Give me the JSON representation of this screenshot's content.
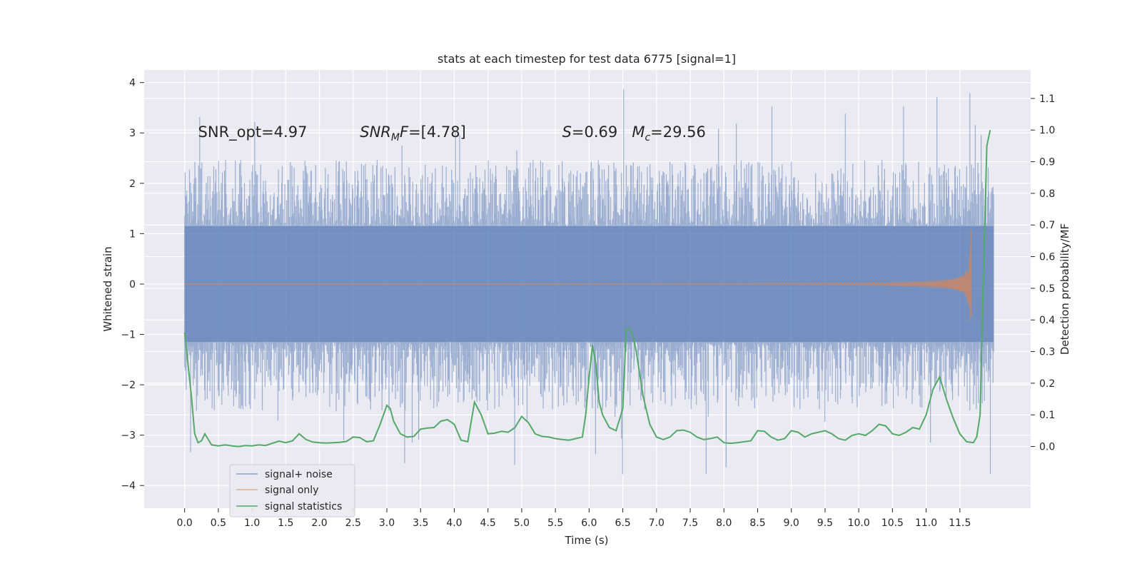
{
  "chart_data": {
    "type": "line",
    "title": "stats at each timestep for test data 6775 [signal=1]",
    "xlabel": "Time (s)",
    "ylabel": "Whitened strain",
    "y2label": "Detection probability/MF",
    "xlim": [
      -0.6,
      12.55
    ],
    "ylim": [
      -4.45,
      4.25
    ],
    "y2lim": [
      -0.195,
      1.19
    ],
    "xticks": [
      0.0,
      0.5,
      1.0,
      1.5,
      2.0,
      2.5,
      3.0,
      3.5,
      4.0,
      4.5,
      5.0,
      5.5,
      6.0,
      6.5,
      7.0,
      7.5,
      8.0,
      8.5,
      9.0,
      9.5,
      10.0,
      10.5,
      11.0,
      11.5
    ],
    "xtick_labels": [
      "0.0",
      "0.5",
      "1.0",
      "1.5",
      "2.0",
      "2.5",
      "3.0",
      "3.5",
      "4.0",
      "4.5",
      "5.0",
      "5.5",
      "6.0",
      "6.5",
      "7.0",
      "7.5",
      "8.0",
      "8.5",
      "9.0",
      "9.5",
      "10.0",
      "10.5",
      "11.0",
      "11.5"
    ],
    "yticks": [
      -4,
      -3,
      -2,
      -1,
      0,
      1,
      2,
      3,
      4
    ],
    "ytick_labels": [
      "−4",
      "−3",
      "−2",
      "−1",
      "0",
      "1",
      "2",
      "3",
      "4"
    ],
    "y2ticks": [
      0.0,
      0.1,
      0.2,
      0.3,
      0.4,
      0.5,
      0.6,
      0.7,
      0.8,
      0.9,
      1.0,
      1.1
    ],
    "y2tick_labels": [
      "0.0",
      "0.1",
      "0.2",
      "0.3",
      "0.4",
      "0.5",
      "0.6",
      "0.7",
      "0.8",
      "0.9",
      "1.0",
      "1.1"
    ],
    "grid": true,
    "legend_position": "lower-left",
    "colors": {
      "background": "#eaeaf2",
      "noise": "#4c72b0",
      "signal": "#dd8452",
      "stat": "#55a868",
      "grid": "#ffffff"
    },
    "annotations": [
      {
        "text": "SNR_opt=4.97",
        "x": 0.2,
        "y": 3.0
      },
      {
        "text": "SNR_MF=[4.78]",
        "x": 2.6,
        "y": 3.0
      },
      {
        "text": "S=0.69   M_c=29.56",
        "x": 5.6,
        "y": 3.0
      }
    ],
    "series": [
      {
        "name": "signal+ noise",
        "axis": "left",
        "kind": "noise_band",
        "x_range": [
          0.0,
          12.0
        ],
        "core_amplitude": 1.15,
        "typical_peak": 2.2,
        "max_peak": 3.9,
        "min_trough": -4.1
      },
      {
        "name": "signal only",
        "axis": "left",
        "kind": "chirp",
        "x_range": [
          0.0,
          11.7
        ],
        "peak_time": 11.67,
        "peak_amplitude": 1.1
      },
      {
        "name": "signal statistics",
        "axis": "right",
        "x": [
          0.0,
          0.05,
          0.1,
          0.15,
          0.2,
          0.25,
          0.3,
          0.4,
          0.5,
          0.6,
          0.7,
          0.8,
          0.9,
          1.0,
          1.1,
          1.2,
          1.3,
          1.4,
          1.5,
          1.6,
          1.7,
          1.8,
          1.9,
          2.0,
          2.1,
          2.2,
          2.3,
          2.4,
          2.5,
          2.6,
          2.7,
          2.8,
          2.9,
          3.0,
          3.05,
          3.1,
          3.2,
          3.3,
          3.4,
          3.5,
          3.6,
          3.7,
          3.8,
          3.9,
          4.0,
          4.1,
          4.2,
          4.3,
          4.4,
          4.5,
          4.6,
          4.7,
          4.8,
          4.9,
          5.0,
          5.1,
          5.2,
          5.3,
          5.4,
          5.5,
          5.6,
          5.7,
          5.8,
          5.9,
          5.95,
          6.0,
          6.05,
          6.1,
          6.15,
          6.2,
          6.3,
          6.4,
          6.5,
          6.55,
          6.6,
          6.65,
          6.7,
          6.8,
          6.9,
          7.0,
          7.1,
          7.2,
          7.3,
          7.4,
          7.5,
          7.6,
          7.7,
          7.8,
          7.9,
          8.0,
          8.1,
          8.2,
          8.3,
          8.4,
          8.5,
          8.6,
          8.7,
          8.8,
          8.9,
          9.0,
          9.1,
          9.2,
          9.3,
          9.4,
          9.5,
          9.6,
          9.7,
          9.8,
          9.9,
          10.0,
          10.1,
          10.2,
          10.3,
          10.4,
          10.5,
          10.6,
          10.7,
          10.8,
          10.9,
          11.0,
          11.1,
          11.2,
          11.3,
          11.4,
          11.5,
          11.6,
          11.7,
          11.75,
          11.8,
          11.85,
          11.9,
          11.95
        ],
        "y": [
          0.36,
          0.26,
          0.16,
          0.04,
          0.012,
          0.018,
          0.04,
          0.005,
          0.002,
          0.005,
          0.002,
          0.0,
          0.003,
          0.002,
          0.005,
          0.003,
          0.01,
          0.017,
          0.012,
          0.018,
          0.04,
          0.022,
          0.014,
          0.012,
          0.011,
          0.012,
          0.013,
          0.016,
          0.03,
          0.028,
          0.015,
          0.018,
          0.07,
          0.13,
          0.12,
          0.08,
          0.04,
          0.03,
          0.032,
          0.055,
          0.058,
          0.06,
          0.08,
          0.085,
          0.07,
          0.02,
          0.015,
          0.14,
          0.1,
          0.04,
          0.042,
          0.048,
          0.045,
          0.06,
          0.095,
          0.075,
          0.04,
          0.032,
          0.03,
          0.025,
          0.022,
          0.02,
          0.025,
          0.03,
          0.1,
          0.22,
          0.32,
          0.26,
          0.14,
          0.1,
          0.06,
          0.05,
          0.12,
          0.37,
          0.375,
          0.35,
          0.3,
          0.16,
          0.07,
          0.03,
          0.022,
          0.03,
          0.05,
          0.052,
          0.045,
          0.03,
          0.022,
          0.025,
          0.03,
          0.012,
          0.01,
          0.012,
          0.015,
          0.018,
          0.05,
          0.048,
          0.03,
          0.02,
          0.025,
          0.05,
          0.045,
          0.03,
          0.04,
          0.045,
          0.05,
          0.04,
          0.025,
          0.02,
          0.035,
          0.04,
          0.035,
          0.05,
          0.07,
          0.065,
          0.04,
          0.035,
          0.045,
          0.06,
          0.055,
          0.1,
          0.18,
          0.22,
          0.15,
          0.09,
          0.04,
          0.015,
          0.012,
          0.03,
          0.1,
          0.55,
          0.95,
          1.0
        ]
      }
    ]
  }
}
